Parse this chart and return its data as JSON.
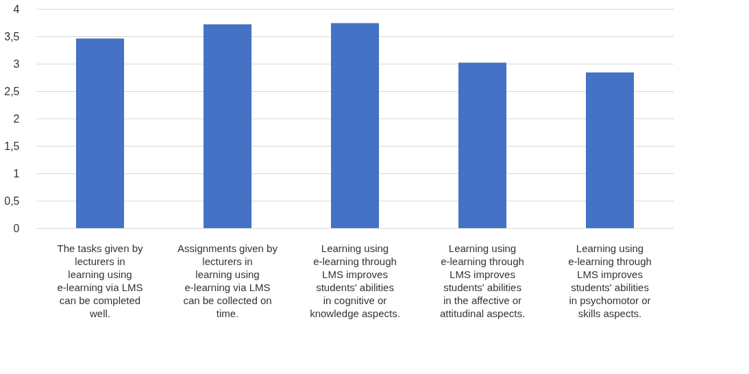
{
  "chart_data": {
    "type": "bar",
    "categories": [
      "The tasks given by lecturers in learning using e-learning via LMS can be completed well.",
      "Assignments given by lecturers in learning using e-learning via LMS can be collected on time.",
      "Learning using e-learning through LMS improves students' abilities in cognitive or knowledge aspects.",
      "Learning using e-learning through LMS improves students' abilities in the affective or attitudinal aspects.",
      "Learning using e-learning through LMS improves students' abilities in psychomotor or skills aspects."
    ],
    "values": [
      3.46,
      3.72,
      3.74,
      3.02,
      2.84
    ],
    "color": "#4472c4",
    "ylim": [
      0,
      4
    ],
    "yticks": [
      0,
      {
        "value": 0.5,
        "label": "0,5"
      },
      1,
      {
        "value": 1.5,
        "label": "1,5"
      },
      2,
      {
        "value": 2.5,
        "label": "2,5"
      },
      3,
      {
        "value": 3.5,
        "label": "3,5"
      },
      4
    ],
    "grid": "y"
  }
}
